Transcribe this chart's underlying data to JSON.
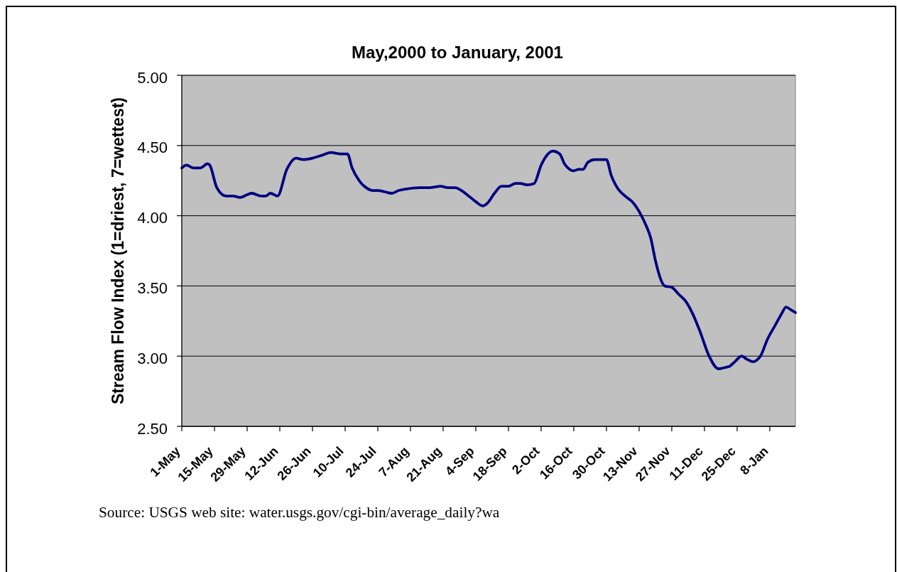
{
  "chart_data": {
    "type": "line",
    "title": "May,2000 to January, 2001",
    "ylabel": "Stream Flow Index (1=driest, 7=wettest)",
    "annotations": [
      "Source: USGS web site: water.usgs.gov/cgi-bin/average_daily?wa"
    ],
    "x": [
      "2000-05-01",
      "2000-05-03",
      "2000-05-06",
      "2000-05-09",
      "2000-05-12",
      "2000-05-13",
      "2000-05-16",
      "2000-05-20",
      "2000-05-23",
      "2000-05-26",
      "2000-05-29",
      "2000-05-31",
      "2000-06-04",
      "2000-06-06",
      "2000-06-08",
      "2000-06-11",
      "2000-06-15",
      "2000-06-19",
      "2000-06-22",
      "2000-06-26",
      "2000-06-30",
      "2000-07-04",
      "2000-07-08",
      "2000-07-11",
      "2000-07-13",
      "2000-07-16",
      "2000-07-19",
      "2000-07-22",
      "2000-07-24",
      "2000-07-27",
      "2000-07-30",
      "2000-08-02",
      "2000-08-05",
      "2000-08-11",
      "2000-08-15",
      "2000-08-20",
      "2000-08-23",
      "2000-08-26",
      "2000-09-01",
      "2000-09-04",
      "2000-09-07",
      "2000-09-09",
      "2000-09-12",
      "2000-09-15",
      "2000-09-18",
      "2000-09-21",
      "2000-09-23",
      "2000-09-26",
      "2000-09-29",
      "2000-10-02",
      "2000-10-04",
      "2000-10-07",
      "2000-10-10",
      "2000-10-12",
      "2000-10-16",
      "2000-10-18",
      "2000-10-20",
      "2000-10-22",
      "2000-10-25",
      "2000-10-27",
      "2000-10-30",
      "2000-11-01",
      "2000-11-04",
      "2000-11-07",
      "2000-11-10",
      "2000-11-14",
      "2000-11-16",
      "2000-11-18",
      "2000-11-20",
      "2000-11-24",
      "2000-11-27",
      "2000-11-30",
      "2000-12-03",
      "2000-12-06",
      "2000-12-09",
      "2000-12-13",
      "2000-12-17",
      "2000-12-20",
      "2000-12-22",
      "2000-12-24",
      "2000-12-27",
      "2000-12-29",
      "2001-01-01",
      "2001-01-03",
      "2001-01-04",
      "2001-01-07",
      "2001-01-10",
      "2001-01-13",
      "2001-01-15",
      "2001-01-17",
      "2001-01-19"
    ],
    "series": [
      {
        "color": "#000080",
        "values": [
          4.34,
          4.36,
          4.34,
          4.34,
          4.37,
          4.36,
          4.2,
          4.14,
          4.14,
          4.13,
          4.15,
          4.16,
          4.14,
          4.14,
          4.16,
          4.14,
          4.33,
          4.41,
          4.4,
          4.41,
          4.43,
          4.45,
          4.44,
          4.44,
          4.34,
          4.25,
          4.2,
          4.18,
          4.18,
          4.17,
          4.16,
          4.18,
          4.19,
          4.2,
          4.2,
          4.21,
          4.2,
          4.2,
          4.14,
          4.1,
          4.07,
          4.09,
          4.16,
          4.21,
          4.21,
          4.23,
          4.23,
          4.22,
          4.23,
          4.36,
          4.42,
          4.46,
          4.44,
          4.37,
          4.32,
          4.33,
          4.33,
          4.38,
          4.4,
          4.4,
          4.4,
          4.29,
          4.19,
          4.14,
          4.1,
          4.0,
          3.93,
          3.84,
          3.68,
          3.5,
          3.49,
          3.44,
          3.39,
          3.3,
          3.18,
          3.0,
          2.91,
          2.92,
          2.93,
          2.96,
          3.0,
          2.98,
          2.96,
          2.98,
          3.0,
          3.12,
          3.21,
          3.3,
          3.35,
          3.33,
          3.31
        ]
      }
    ],
    "xlim": [
      "2000-05-01",
      "2001-01-19"
    ],
    "xticks": [
      {
        "value": "2000-05-01",
        "label": "1-May"
      },
      {
        "value": "2000-05-15",
        "label": "15-May"
      },
      {
        "value": "2000-05-29",
        "label": "29-May"
      },
      {
        "value": "2000-06-12",
        "label": "12-Jun"
      },
      {
        "value": "2000-06-26",
        "label": "26-Jun"
      },
      {
        "value": "2000-07-10",
        "label": "10-Jul"
      },
      {
        "value": "2000-07-24",
        "label": "24-Jul"
      },
      {
        "value": "2000-08-07",
        "label": "7-Aug"
      },
      {
        "value": "2000-08-21",
        "label": "21-Aug"
      },
      {
        "value": "2000-09-04",
        "label": "4-Sep"
      },
      {
        "value": "2000-09-18",
        "label": "18-Sep"
      },
      {
        "value": "2000-10-02",
        "label": "2-Oct"
      },
      {
        "value": "2000-10-16",
        "label": "16-Oct"
      },
      {
        "value": "2000-10-30",
        "label": "30-Oct"
      },
      {
        "value": "2000-11-13",
        "label": "13-Nov"
      },
      {
        "value": "2000-11-27",
        "label": "27-Nov"
      },
      {
        "value": "2000-12-11",
        "label": "11-Dec"
      },
      {
        "value": "2000-12-25",
        "label": "25-Dec"
      },
      {
        "value": "2001-01-08",
        "label": "8-Jan"
      }
    ],
    "ylim": [
      2.5,
      5
    ],
    "yticks": [
      {
        "value": 2.5,
        "label": "2.50"
      },
      {
        "value": 3,
        "label": "3.00"
      },
      {
        "value": 3.5,
        "label": "3.50"
      },
      {
        "value": 4,
        "label": "4.00"
      },
      {
        "value": 4.5,
        "label": "4.50"
      },
      {
        "value": 5,
        "label": "5.00"
      }
    ],
    "grid": "y"
  }
}
